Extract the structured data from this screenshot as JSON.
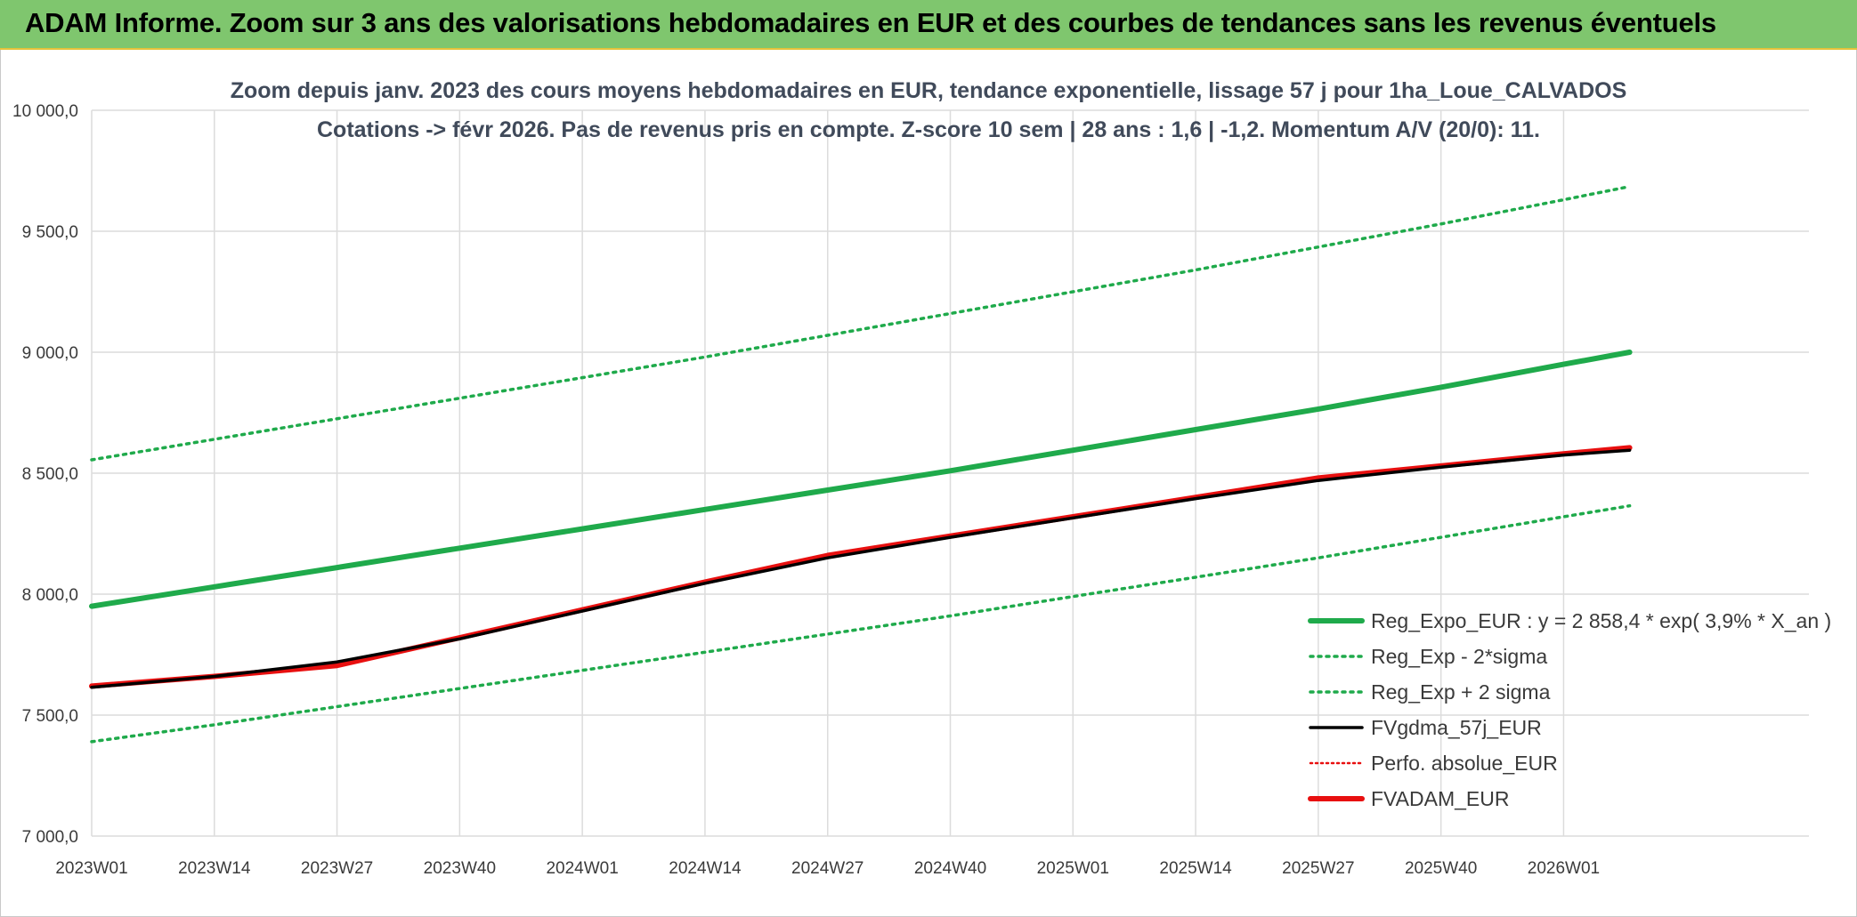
{
  "header": {
    "title": "ADAM Informe. Zoom sur 3 ans des valorisations hebdomadaires en EUR et des courbes de tendances sans les revenus éventuels"
  },
  "colors": {
    "banner": "#7fc66e",
    "trend": "#1faa4b",
    "sigma": "#1faa4b",
    "gdma": "#000000",
    "perfo": "#e81010",
    "fvadam": "#e81010"
  },
  "chart_data": {
    "type": "line",
    "title": [
      "Zoom depuis janv. 2023 des cours moyens hebdomadaires en EUR, tendance exponentielle, lissage 57 j pour 1ha_Loue_CALVADOS",
      "Cotations -> févr 2026. Pas de revenus pris en compte. Z-score 10 sem | 28 ans : 1,6 | -1,2. Momentum A/V (20/0): 11."
    ],
    "xlabel": "",
    "ylabel": "",
    "ylim": [
      7000,
      10000
    ],
    "grid": true,
    "legend_position": "bottom-right",
    "x_ticks": [
      "2023W01",
      "2023W14",
      "2023W27",
      "2023W40",
      "2024W01",
      "2024W14",
      "2024W27",
      "2024W40",
      "2025W01",
      "2025W14",
      "2025W27",
      "2025W40",
      "2026W01"
    ],
    "y_ticks": [
      "7 000,0",
      "7 500,0",
      "8 000,0",
      "8 500,0",
      "9 000,0",
      "9 500,0",
      "10 000,0"
    ],
    "y_tick_values": [
      7000,
      7500,
      8000,
      8500,
      9000,
      9500,
      10000
    ],
    "x": [
      0,
      13,
      26,
      39,
      52,
      65,
      78,
      91,
      104,
      117,
      130,
      143,
      156,
      163
    ],
    "series": [
      {
        "name": "Reg_Expo_EUR : y = 2 858,4 * exp( 3,9% *  X_an )",
        "style": "solid-thick",
        "color": "#1faa4b",
        "values": [
          7950,
          8030,
          8110,
          8190,
          8270,
          8350,
          8430,
          8510,
          8595,
          8680,
          8765,
          8855,
          8950,
          9000
        ]
      },
      {
        "name": "Reg_Exp - 2*sigma",
        "style": "dotted",
        "color": "#1faa4b",
        "values": [
          7390,
          7460,
          7535,
          7610,
          7685,
          7760,
          7835,
          7910,
          7990,
          8070,
          8150,
          8235,
          8320,
          8365
        ]
      },
      {
        "name": "Reg_Exp + 2 sigma",
        "style": "dotted",
        "color": "#1faa4b",
        "values": [
          8555,
          8640,
          8725,
          8810,
          8895,
          8980,
          9070,
          9160,
          9250,
          9340,
          9435,
          9530,
          9630,
          9685
        ]
      },
      {
        "name": "FVgdma_57j_EUR",
        "style": "solid",
        "color": "#000000",
        "values": [
          7615,
          7660,
          7720,
          7815,
          7930,
          8045,
          8150,
          8235,
          8315,
          8395,
          8470,
          8525,
          8575,
          8595
        ]
      },
      {
        "name": "Perfo. absolue_EUR",
        "style": "dotted-thin",
        "color": "#e81010",
        "values": [
          7620,
          7660,
          7705,
          7820,
          7935,
          8050,
          8160,
          8240,
          8320,
          8400,
          8480,
          8530,
          8580,
          8605
        ]
      },
      {
        "name": "FVADAM_EUR",
        "style": "solid-thick",
        "color": "#e81010",
        "values": [
          7620,
          7660,
          7705,
          7820,
          7935,
          8050,
          8160,
          8240,
          8320,
          8400,
          8480,
          8530,
          8580,
          8605
        ]
      }
    ]
  }
}
